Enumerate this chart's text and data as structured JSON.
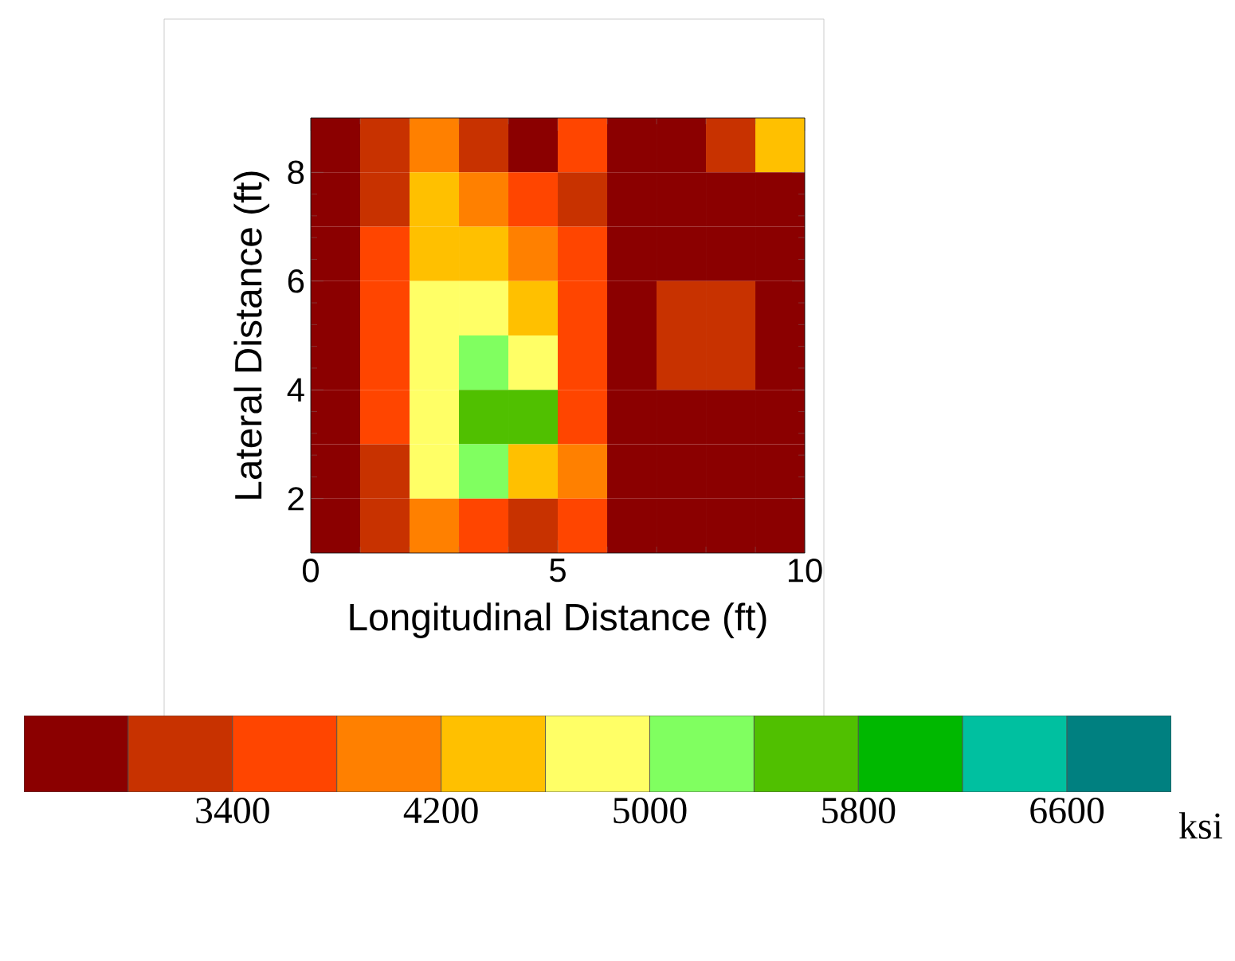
{
  "chart_data": {
    "type": "heatmap",
    "xlabel": "Longitudinal Distance (ft)",
    "ylabel": "Lateral Distance (ft)",
    "clabel": "ksi",
    "xlim": [
      0,
      10
    ],
    "xticks": [
      0,
      5,
      10
    ],
    "ylim": [
      1,
      9
    ],
    "yticks": [
      2,
      4,
      6,
      8
    ],
    "clim": [
      2600,
      7000
    ],
    "cticks": [
      3400,
      4200,
      5000,
      5800,
      6600
    ],
    "colors": [
      "#8b0000",
      "#c83200",
      "#ff4500",
      "#ff8000",
      "#ffc000",
      "#ffff66",
      "#80ff60",
      "#50c000",
      "#00b800",
      "#00c0a0",
      "#008080"
    ],
    "cells": [
      [
        2800,
        3200,
        3800,
        3200,
        2800,
        3400,
        2800,
        2800,
        3200,
        4200
      ],
      [
        2800,
        3200,
        4200,
        3800,
        3400,
        3200,
        2800,
        2800,
        2800,
        2800
      ],
      [
        2800,
        3400,
        4400,
        4400,
        4000,
        3400,
        2800,
        2800,
        2800,
        2800
      ],
      [
        2800,
        3400,
        4600,
        4600,
        4200,
        3400,
        2800,
        3200,
        3200,
        2800
      ],
      [
        2800,
        3400,
        4800,
        5200,
        4600,
        3400,
        2800,
        3200,
        3200,
        2800
      ],
      [
        2800,
        3400,
        4800,
        5600,
        5400,
        3600,
        2800,
        2800,
        2800,
        2800
      ],
      [
        2800,
        3200,
        4600,
        5000,
        4200,
        3800,
        2800,
        2800,
        2800,
        2800
      ],
      [
        2800,
        3000,
        3800,
        3600,
        3200,
        3600,
        2800,
        2800,
        2800,
        2800
      ]
    ]
  }
}
